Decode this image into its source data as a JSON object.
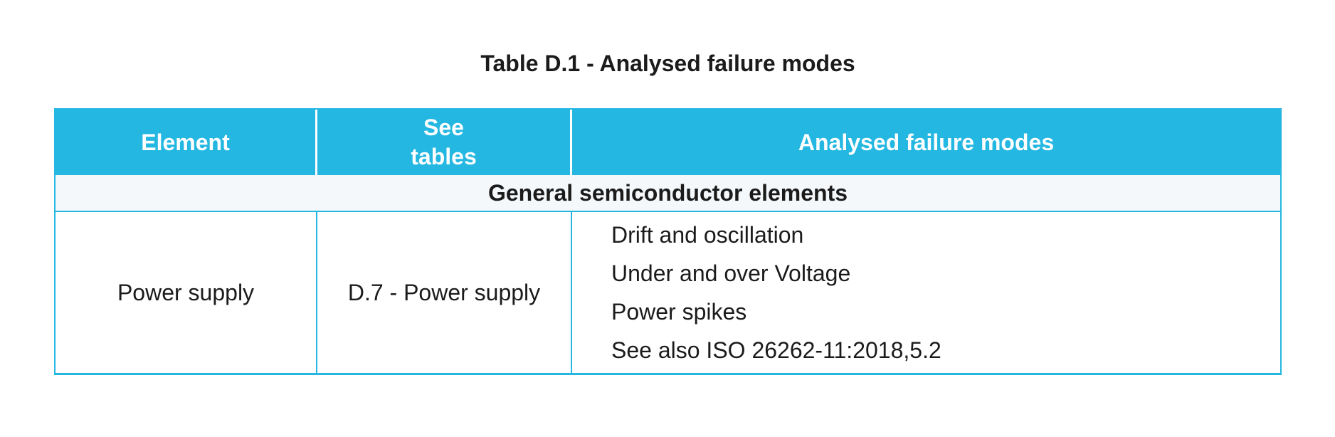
{
  "caption": "Table D.1 - Analysed failure modes",
  "table": {
    "headers": [
      "Element",
      "See\ntables",
      "Analysed failure modes"
    ],
    "section": "General semiconductor elements",
    "rows": [
      {
        "element": "Power supply",
        "see_tables": "D.7 - Power supply",
        "failure_modes": [
          "Drift and oscillation",
          "Under and over Voltage",
          "Power spikes",
          "See also ISO 26262-11:2018,5.2"
        ]
      }
    ]
  },
  "colors": {
    "header_bg": "#24b7e2",
    "border": "#24b7e2",
    "section_bg": "#f4f8fb",
    "header_text": "#ffffff",
    "body_text": "#1b1b1b"
  }
}
